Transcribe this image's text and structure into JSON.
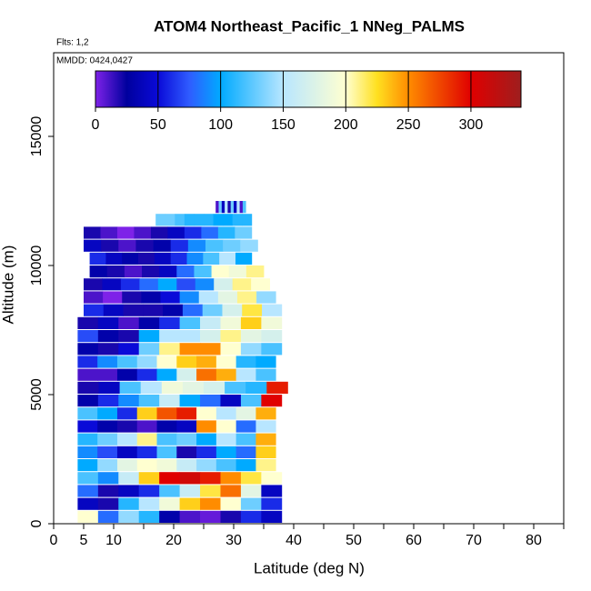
{
  "chart_data": {
    "type": "heatmap-strips",
    "title": "ATOM4 Northeast_Pacific_1 NNeg_PALMS",
    "flights_note": "Flts: 1,2",
    "dates_note": "MMDD: 0424,0427",
    "x_label": "Latitude (deg N)",
    "y_label": "Altitude (m)",
    "xlim": [
      0,
      85
    ],
    "xticks": [
      0,
      5,
      10,
      20,
      30,
      40,
      50,
      60,
      70,
      80
    ],
    "x_minor_ticks": [
      15,
      25,
      35,
      45,
      55,
      65,
      75,
      85
    ],
    "ylim": [
      0,
      18240
    ],
    "yticks": [
      0,
      5000,
      10000,
      15000
    ],
    "row_height": 500,
    "colorbar": {
      "lim": [
        0,
        340
      ],
      "ticks": [
        0,
        50,
        100,
        150,
        200,
        250,
        300
      ],
      "stops": [
        [
          0,
          "#7e22e8"
        ],
        [
          25,
          "#00009e"
        ],
        [
          50,
          "#0a0ad8"
        ],
        [
          75,
          "#2f5cff"
        ],
        [
          100,
          "#00aaff"
        ],
        [
          150,
          "#b8e6ff"
        ],
        [
          200,
          "#ffffd0"
        ],
        [
          225,
          "#ffe020"
        ],
        [
          250,
          "#ff8c00"
        ],
        [
          300,
          "#e00000"
        ],
        [
          340,
          "#9e1e1e"
        ]
      ]
    },
    "rows": [
      {
        "alt": 0,
        "lat": [
          4,
          38
        ],
        "values": [
          200,
          80,
          140,
          110,
          30,
          10,
          5,
          20,
          60,
          40
        ]
      },
      {
        "alt": 500,
        "lat": [
          4,
          38
        ],
        "values": [
          40,
          20,
          110,
          150,
          190,
          230,
          250,
          200,
          130,
          60
        ]
      },
      {
        "alt": 1000,
        "lat": [
          4,
          38
        ],
        "values": [
          80,
          20,
          40,
          60,
          120,
          160,
          220,
          260,
          180,
          40
        ]
      },
      {
        "alt": 1500,
        "lat": [
          4,
          38
        ],
        "values": [
          120,
          90,
          160,
          230,
          300,
          310,
          290,
          250,
          220,
          200
        ]
      },
      {
        "alt": 2000,
        "lat": [
          4,
          37
        ],
        "values": [
          100,
          140,
          180,
          200,
          190,
          160,
          140,
          120,
          100,
          210
        ]
      },
      {
        "alt": 2500,
        "lat": [
          4,
          37
        ],
        "values": [
          90,
          70,
          40,
          60,
          120,
          20,
          60,
          100,
          80,
          230
        ]
      },
      {
        "alt": 3000,
        "lat": [
          4,
          37
        ],
        "values": [
          110,
          130,
          150,
          210,
          120,
          130,
          100,
          150,
          120,
          240
        ]
      },
      {
        "alt": 3500,
        "lat": [
          4,
          37
        ],
        "values": [
          50,
          30,
          20,
          10,
          30,
          40,
          250,
          200,
          80,
          150
        ]
      },
      {
        "alt": 4000,
        "lat": [
          4,
          37
        ],
        "values": [
          120,
          100,
          60,
          230,
          270,
          290,
          200,
          150,
          180,
          240
        ]
      },
      {
        "alt": 4500,
        "lat": [
          4,
          38
        ],
        "values": [
          30,
          60,
          90,
          120,
          160,
          100,
          80,
          40,
          120,
          300
        ]
      },
      {
        "alt": 5000,
        "lat": [
          4,
          39
        ],
        "values": [
          20,
          40,
          120,
          150,
          190,
          180,
          170,
          120,
          110,
          290
        ]
      },
      {
        "alt": 5500,
        "lat": [
          4,
          37
        ],
        "values": [
          10,
          10,
          30,
          60,
          100,
          170,
          260,
          240,
          150,
          120
        ]
      },
      {
        "alt": 6000,
        "lat": [
          4,
          37
        ],
        "values": [
          60,
          90,
          120,
          140,
          200,
          230,
          240,
          200,
          110,
          100
        ]
      },
      {
        "alt": 6500,
        "lat": [
          4,
          38
        ],
        "values": [
          30,
          20,
          50,
          130,
          210,
          250,
          250,
          200,
          140,
          120
        ]
      },
      {
        "alt": 7000,
        "lat": [
          4,
          38
        ],
        "values": [
          70,
          30,
          20,
          100,
          150,
          150,
          170,
          210,
          180,
          170
        ]
      },
      {
        "alt": 7500,
        "lat": [
          4,
          38
        ],
        "values": [
          20,
          40,
          10,
          30,
          60,
          120,
          160,
          190,
          230,
          190
        ]
      },
      {
        "alt": 8000,
        "lat": [
          5,
          38
        ],
        "values": [
          60,
          40,
          20,
          20,
          30,
          80,
          130,
          170,
          220,
          150
        ]
      },
      {
        "alt": 8500,
        "lat": [
          5,
          37
        ],
        "values": [
          10,
          0,
          20,
          30,
          50,
          90,
          150,
          180,
          210,
          140
        ]
      },
      {
        "alt": 9000,
        "lat": [
          5,
          36
        ],
        "values": [
          20,
          40,
          60,
          80,
          100,
          70,
          90,
          170,
          210,
          200
        ]
      },
      {
        "alt": 9500,
        "lat": [
          6,
          35
        ],
        "values": [
          30,
          20,
          10,
          20,
          40,
          80,
          120,
          200,
          190,
          210
        ]
      },
      {
        "alt": 10000,
        "lat": [
          6,
          33
        ],
        "values": [
          60,
          40,
          30,
          20,
          40,
          60,
          90,
          120,
          150,
          100
        ]
      },
      {
        "alt": 10500,
        "lat": [
          5,
          34
        ],
        "values": [
          40,
          20,
          10,
          20,
          30,
          60,
          90,
          120,
          130,
          140
        ]
      },
      {
        "alt": 11000,
        "lat": [
          5,
          33
        ],
        "values": [
          20,
          10,
          0,
          10,
          20,
          40,
          60,
          80,
          110,
          130
        ]
      },
      {
        "alt": 11500,
        "lat": [
          17,
          33
        ],
        "values": [
          130,
          130,
          120,
          110,
          110,
          110,
          100,
          100,
          110,
          110
        ]
      },
      {
        "alt": 12000,
        "lat": [
          27,
          32
        ],
        "values": [
          10,
          130,
          40,
          150,
          20,
          130,
          40,
          150,
          10,
          120
        ]
      }
    ]
  }
}
